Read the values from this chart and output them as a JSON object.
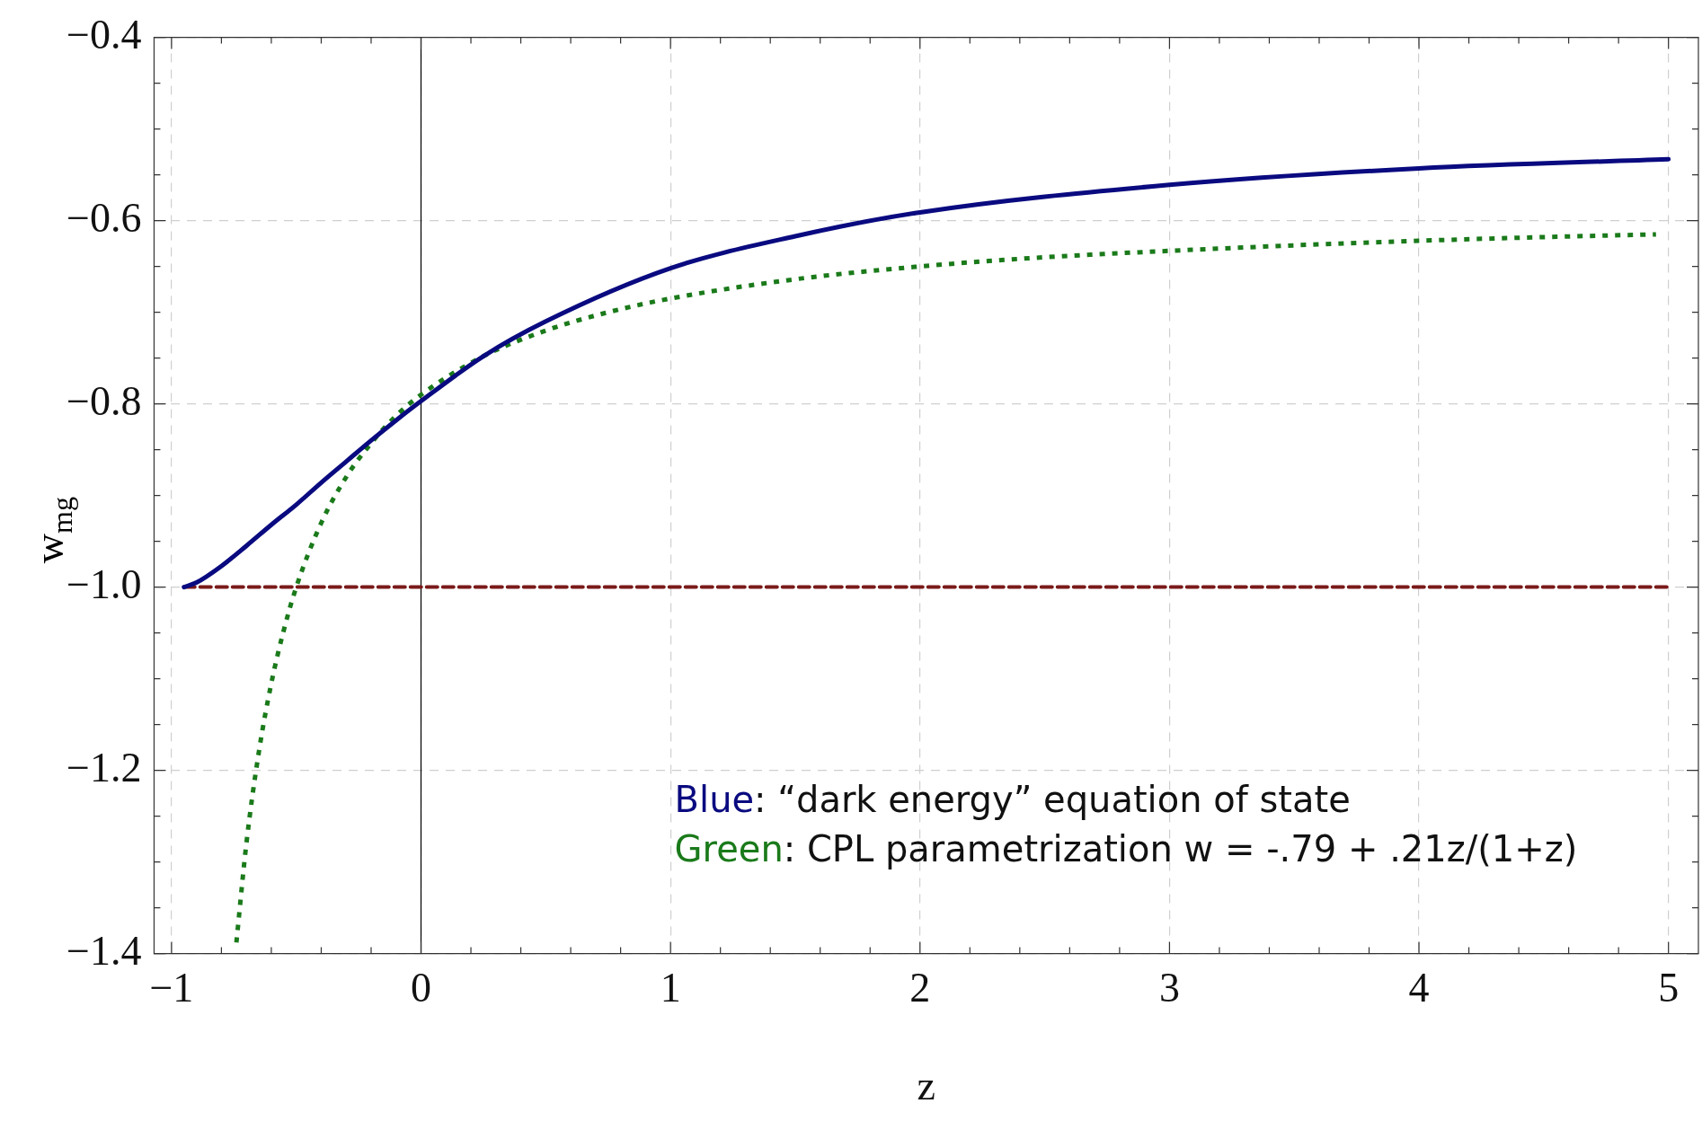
{
  "chart_data": {
    "type": "line",
    "xlabel": "z",
    "ylabel": "w$_{mg}$",
    "xlim": [
      -1.07,
      5.12
    ],
    "ylim": [
      -1.4,
      -0.4
    ],
    "xticks": [
      {
        "value": -1,
        "label": "−1"
      },
      0,
      1,
      2,
      3,
      4,
      5
    ],
    "yticks": [
      {
        "value": -1.4,
        "label": "−1.4"
      },
      {
        "value": -1.2,
        "label": "−1.2"
      },
      {
        "value": -1.0,
        "label": "−1.0"
      },
      {
        "value": -0.8,
        "label": "−0.8"
      },
      {
        "value": -0.6,
        "label": "−0.6"
      },
      {
        "value": -0.4,
        "label": "−0.4"
      }
    ],
    "grid": true,
    "legend": false,
    "marker": "none",
    "ref_lines": [
      {
        "axis": "x",
        "value": 0,
        "color": "#000000"
      }
    ],
    "series": [
      {
        "color": "#0a0a80",
        "line_style": "solid",
        "x": [
          -0.95,
          -0.9,
          -0.8,
          -0.7,
          -0.6,
          -0.5,
          -0.4,
          -0.3,
          -0.2,
          -0.1,
          0,
          0.25,
          0.5,
          1,
          1.5,
          2,
          3,
          4,
          5
        ],
        "values": [
          -1.0,
          -0.995,
          -0.977,
          -0.955,
          -0.932,
          -0.91,
          -0.886,
          -0.863,
          -0.84,
          -0.818,
          -0.797,
          -0.748,
          -0.71,
          -0.652,
          -0.617,
          -0.591,
          -0.561,
          -0.543,
          -0.533
        ]
      },
      {
        "color": "#1a7a1a",
        "line_style": "dotted",
        "x": [
          -0.74,
          -0.7,
          -0.65,
          -0.6,
          -0.55,
          -0.5,
          -0.4,
          -0.3,
          -0.2,
          -0.1,
          0,
          0.25,
          0.5,
          0.75,
          1,
          1.5,
          2,
          2.5,
          3,
          3.5,
          4,
          4.5,
          4.95
        ],
        "values": [
          -1.388,
          -1.28,
          -1.18,
          -1.105,
          -1.047,
          -1.0,
          -0.93,
          -0.88,
          -0.843,
          -0.813,
          -0.79,
          -0.748,
          -0.72,
          -0.7,
          -0.685,
          -0.664,
          -0.65,
          -0.64,
          -0.633,
          -0.627,
          -0.622,
          -0.618,
          -0.615
        ]
      },
      {
        "color": "#7a1a1a",
        "line_style": "dashed",
        "x": [
          -0.95,
          5
        ],
        "values": [
          -1.0,
          -1.0
        ]
      }
    ],
    "annotations": [
      "Blue: “dark energy” equation of state",
      "Green: CPL parametrization w = -.79 + .21z/(1+z)"
    ]
  }
}
